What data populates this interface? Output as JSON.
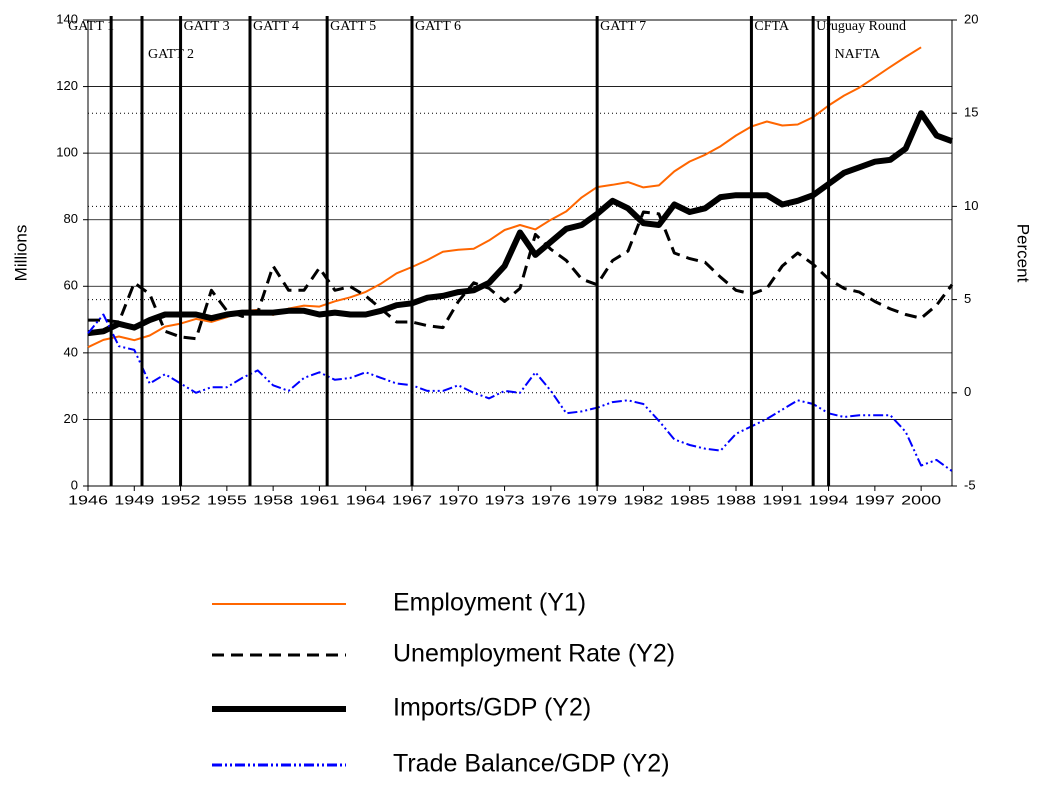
{
  "chart_data": {
    "type": "line",
    "y_label": "Millions",
    "y2_label": "Percent",
    "x": [
      1946,
      1947,
      1948,
      1949,
      1950,
      1951,
      1952,
      1953,
      1954,
      1955,
      1956,
      1957,
      1958,
      1959,
      1960,
      1961,
      1962,
      1963,
      1964,
      1965,
      1966,
      1967,
      1968,
      1969,
      1970,
      1971,
      1972,
      1973,
      1974,
      1975,
      1976,
      1977,
      1978,
      1979,
      1980,
      1981,
      1982,
      1983,
      1984,
      1985,
      1986,
      1987,
      1988,
      1989,
      1990,
      1991,
      1992,
      1993,
      1994,
      1995,
      1996,
      1997,
      1998,
      1999,
      2000,
      2001,
      2002
    ],
    "xlim": [
      1946,
      2002
    ],
    "xticks": [
      1946,
      1949,
      1952,
      1955,
      1958,
      1961,
      1964,
      1967,
      1970,
      1973,
      1976,
      1979,
      1982,
      1985,
      1988,
      1991,
      1994,
      1997,
      2000
    ],
    "ylim": [
      0,
      140
    ],
    "yticks": [
      0,
      20,
      40,
      60,
      80,
      100,
      120,
      140
    ],
    "y2lim": [
      -5,
      20
    ],
    "y2ticks": [
      -5,
      0,
      5,
      10,
      15,
      20
    ],
    "grid": true,
    "series": [
      {
        "name": "Employment (Y1)",
        "color": "#ff6600",
        "values": [
          41.7,
          43.9,
          44.9,
          43.8,
          45.2,
          47.9,
          48.8,
          50.2,
          49.3,
          50.7,
          52.5,
          52.9,
          51.4,
          53.3,
          54.2,
          53.9,
          55.5,
          56.7,
          58.3,
          60.8,
          63.9,
          65.8,
          67.9,
          70.4,
          71.0,
          71.3,
          73.8,
          76.9,
          78.4,
          77.1,
          80.0,
          82.5,
          86.7,
          89.8,
          90.5,
          91.3,
          89.7,
          90.3,
          94.5,
          97.5,
          99.5,
          102.1,
          105.3,
          108.0,
          109.5,
          108.3,
          108.6,
          110.8,
          114.3,
          117.3,
          119.7,
          122.8,
          125.9,
          128.9,
          131.8,
          null,
          null
        ]
      },
      {
        "name": "Unemployment Rate (Y2)",
        "color": "#000000",
        "axis": "y2",
        "values": [
          3.9,
          3.9,
          3.8,
          5.9,
          5.3,
          3.3,
          3.0,
          2.9,
          5.5,
          4.4,
          4.1,
          4.3,
          6.8,
          5.5,
          5.5,
          6.7,
          5.5,
          5.7,
          5.2,
          4.5,
          3.8,
          3.8,
          3.6,
          3.5,
          4.9,
          5.9,
          5.6,
          4.9,
          5.6,
          8.5,
          7.7,
          7.1,
          6.1,
          5.8,
          7.1,
          7.6,
          9.7,
          9.6,
          7.5,
          7.2,
          7.0,
          6.2,
          5.5,
          5.3,
          5.6,
          6.8,
          7.5,
          6.9,
          6.1,
          5.6,
          5.4,
          4.9,
          4.5,
          4.2,
          4.0,
          4.7,
          5.8
        ]
      },
      {
        "name": "Imports/GDP (Y2)",
        "color": "#000000",
        "axis": "y2",
        "values": [
          3.2,
          3.3,
          3.7,
          3.5,
          3.9,
          4.2,
          4.2,
          4.2,
          4.0,
          4.2,
          4.3,
          4.3,
          4.3,
          4.4,
          4.4,
          4.2,
          4.3,
          4.2,
          4.2,
          4.4,
          4.7,
          4.8,
          5.1,
          5.2,
          5.4,
          5.5,
          5.9,
          6.8,
          8.6,
          7.4,
          8.1,
          8.8,
          9.0,
          9.6,
          10.3,
          9.9,
          9.1,
          9.0,
          10.1,
          9.7,
          9.9,
          10.5,
          10.6,
          10.6,
          10.6,
          10.1,
          10.3,
          10.6,
          11.2,
          11.8,
          12.1,
          12.4,
          12.5,
          13.1,
          15.0,
          13.8,
          13.5
        ]
      },
      {
        "name": "Trade Balance/GDP (Y2)",
        "color": "#0000ff",
        "axis": "y2",
        "values": [
          3.2,
          4.2,
          2.5,
          2.3,
          0.5,
          1.0,
          0.5,
          0.0,
          0.3,
          0.3,
          0.8,
          1.2,
          0.4,
          0.1,
          0.8,
          1.1,
          0.7,
          0.8,
          1.1,
          0.8,
          0.5,
          0.4,
          0.1,
          0.1,
          0.4,
          0.0,
          -0.3,
          0.1,
          0.0,
          1.1,
          0.1,
          -1.1,
          -1.0,
          -0.8,
          -0.5,
          -0.4,
          -0.6,
          -1.5,
          -2.5,
          -2.8,
          -3.0,
          -3.1,
          -2.2,
          -1.8,
          -1.4,
          -0.9,
          -0.4,
          -0.6,
          -1.1,
          -1.3,
          -1.2,
          -1.2,
          -1.2,
          -2.1,
          -3.9,
          -3.6,
          -4.2
        ]
      }
    ],
    "events": [
      {
        "label": "GATT 1",
        "x": 1947.5
      },
      {
        "label": "GATT 2",
        "x": 1949.5
      },
      {
        "label": "GATT 3",
        "x": 1952
      },
      {
        "label": "GATT 4",
        "x": 1956.5
      },
      {
        "label": "GATT 5",
        "x": 1961.5
      },
      {
        "label": "GATT 6",
        "x": 1967
      },
      {
        "label": "GATT 7",
        "x": 1979
      },
      {
        "label": "CFTA",
        "x": 1989
      },
      {
        "label": "Uruguay Round",
        "x": 1993
      },
      {
        "label": "NAFTA",
        "x": 1994
      }
    ]
  }
}
